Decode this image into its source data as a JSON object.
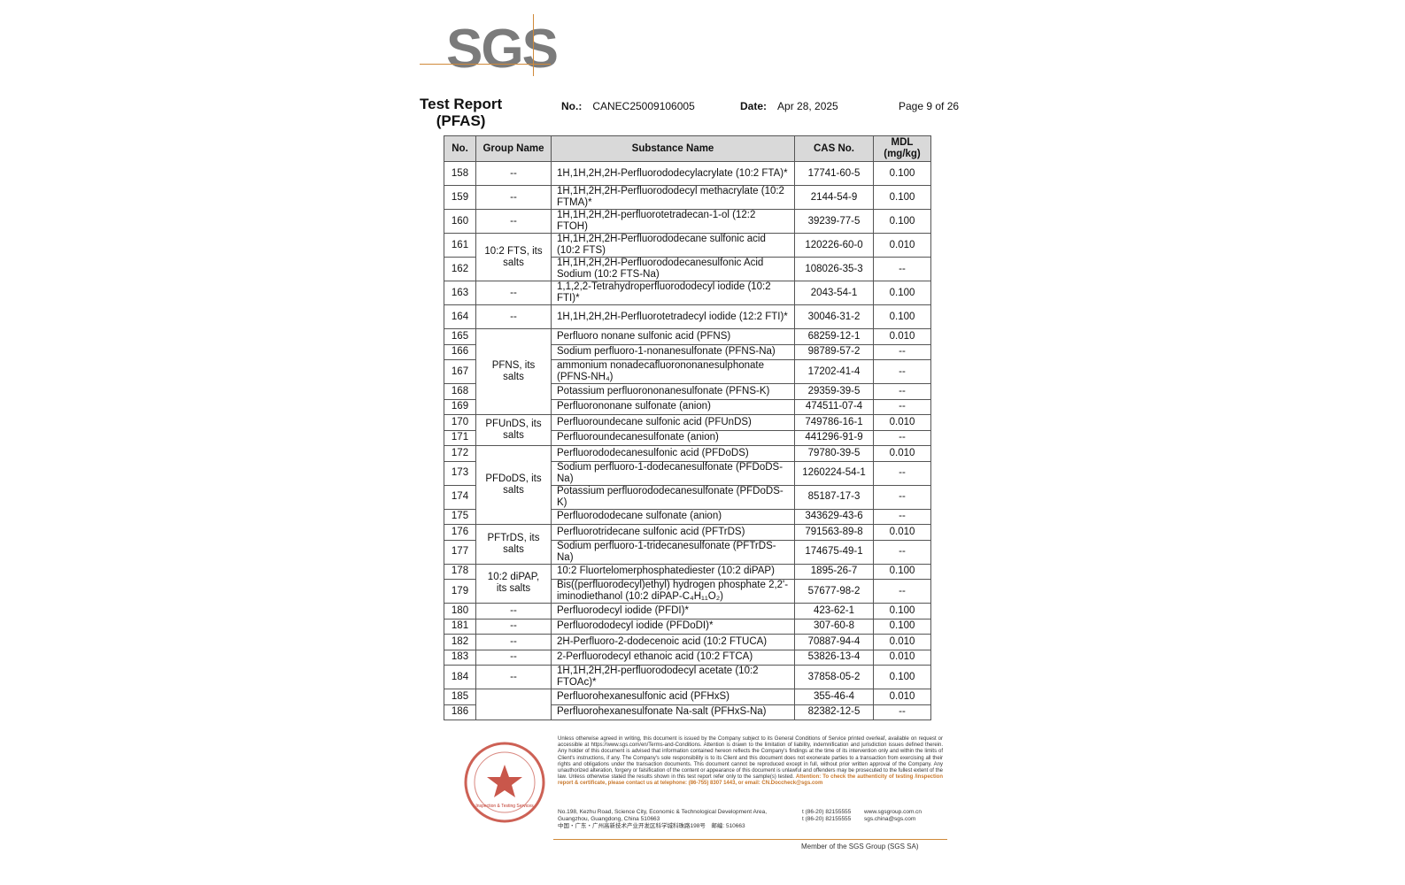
{
  "logo": {
    "text": "SGS"
  },
  "header": {
    "title_line1": "Test Report",
    "title_line2": "(PFAS)",
    "no_label": "No.:",
    "no_value": "CANEC25009106005",
    "date_label": "Date:",
    "date_value": "Apr 28, 2025",
    "page": "Page 9 of 26"
  },
  "table": {
    "columns": [
      "No.",
      "Group Name",
      "Substance Name",
      "CAS No.",
      "MDL (mg/kg)"
    ],
    "rows": [
      {
        "no": "158",
        "group": "--",
        "group_rows": 1,
        "name": "1H,1H,2H,2H-Perfluorododecylacrylate (10:2 FTA)*",
        "cas": "17741-60-5",
        "mdl": "0.100",
        "lines": 2
      },
      {
        "no": "159",
        "group": "--",
        "group_rows": 1,
        "name": "1H,1H,2H,2H-Perfluorododecyl methacrylate (10:2 FTMA)*",
        "cas": "2144-54-9",
        "mdl": "0.100",
        "lines": 2
      },
      {
        "no": "160",
        "group": "--",
        "group_rows": 1,
        "name": "1H,1H,2H,2H-perfluorotetradecan-1-ol (12:2 FTOH)",
        "cas": "39239-77-5",
        "mdl": "0.100",
        "lines": 2
      },
      {
        "no": "161",
        "group": "10:2 FTS, its salts",
        "group_rows": 2,
        "name": "1H,1H,2H,2H-Perfluorododecane sulfonic acid (10:2 FTS)",
        "cas": "120226-60-0",
        "mdl": "0.010",
        "lines": 2
      },
      {
        "no": "162",
        "name": "1H,1H,2H,2H-Perfluorododecanesulfonic Acid Sodium (10:2 FTS-Na)",
        "cas": "108026-35-3",
        "mdl": "--",
        "lines": 2
      },
      {
        "no": "163",
        "group": "--",
        "group_rows": 1,
        "name": "1,1,2,2-Tetrahydroperfluorododecyl iodide (10:2 FTI)*",
        "cas": "2043-54-1",
        "mdl": "0.100",
        "lines": 2
      },
      {
        "no": "164",
        "group": "--",
        "group_rows": 1,
        "name": "1H,1H,2H,2H-Perfluorotetradecyl iodide (12:2 FTI)*",
        "cas": "30046-31-2",
        "mdl": "0.100",
        "lines": 2
      },
      {
        "no": "165",
        "group": "PFNS, its salts",
        "group_rows": 5,
        "name": "Perfluoro nonane sulfonic acid (PFNS)",
        "cas": "68259-12-1",
        "mdl": "0.010",
        "lines": 1
      },
      {
        "no": "166",
        "name": "Sodium perfluoro-1-nonanesulfonate (PFNS-Na)",
        "cas": "98789-57-2",
        "mdl": "--",
        "lines": 1
      },
      {
        "no": "167",
        "name": "ammonium nonadecafluorononanesulphonate (PFNS-NH₄)",
        "cas": "17202-41-4",
        "mdl": "--",
        "lines": 2
      },
      {
        "no": "168",
        "name": "Potassium perfluorononanesulfonate (PFNS-K)",
        "cas": "29359-39-5",
        "mdl": "--",
        "lines": 1
      },
      {
        "no": "169",
        "name": "Perfluorononane sulfonate (anion)",
        "cas": "474511-07-4",
        "mdl": "--",
        "lines": 1
      },
      {
        "no": "170",
        "group": "PFUnDS, its salts",
        "group_rows": 2,
        "name": "Perfluoroundecane sulfonic acid (PFUnDS)",
        "cas": "749786-16-1",
        "mdl": "0.010",
        "lines": 1
      },
      {
        "no": "171",
        "name": "Perfluoroundecanesulfonate (anion)",
        "cas": "441296-91-9",
        "mdl": "--",
        "lines": 1
      },
      {
        "no": "172",
        "group": "PFDoDS, its salts",
        "group_rows": 4,
        "name": "Perfluorododecanesulfonic acid (PFDoDS)",
        "cas": "79780-39-5",
        "mdl": "0.010",
        "lines": 1
      },
      {
        "no": "173",
        "name": "Sodium perfluoro-1-dodecanesulfonate (PFDoDS-Na)",
        "cas": "1260224-54-1",
        "mdl": "--",
        "lines": 2
      },
      {
        "no": "174",
        "name": "Potassium perfluorododecanesulfonate (PFDoDS-K)",
        "cas": "85187-17-3",
        "mdl": "--",
        "lines": 2
      },
      {
        "no": "175",
        "name": "Perfluorododecane sulfonate (anion)",
        "cas": "343629-43-6",
        "mdl": "--",
        "lines": 1
      },
      {
        "no": "176",
        "group": "PFTrDS, its salts",
        "group_rows": 2,
        "name": "Perfluorotridecane sulfonic acid (PFTrDS)",
        "cas": "791563-89-8",
        "mdl": "0.010",
        "lines": 1
      },
      {
        "no": "177",
        "name": "Sodium perfluoro-1-tridecanesulfonate (PFTrDS-Na)",
        "cas": "174675-49-1",
        "mdl": "--",
        "lines": 2
      },
      {
        "no": "178",
        "group": "10:2 diPAP, its salts",
        "group_rows": 2,
        "name": "10:2 Fluortelomerphosphatediester (10:2 diPAP)",
        "cas": "1895-26-7",
        "mdl": "0.100",
        "lines": 1
      },
      {
        "no": "179",
        "name": "Bis((perfluorodecyl)ethyl) hydrogen phosphate 2,2'-iminodiethanol (10:2 diPAP-C₄H₁₁O₂)",
        "cas": "57677-98-2",
        "mdl": "--",
        "lines": 2
      },
      {
        "no": "180",
        "group": "--",
        "group_rows": 1,
        "name": "Perfluorodecyl iodide (PFDI)*",
        "cas": "423-62-1",
        "mdl": "0.100",
        "lines": 1
      },
      {
        "no": "181",
        "group": "--",
        "group_rows": 1,
        "name": "Perfluorododecyl iodide (PFDoDI)*",
        "cas": "307-60-8",
        "mdl": "0.100",
        "lines": 1
      },
      {
        "no": "182",
        "group": "--",
        "group_rows": 1,
        "name": "2H-Perfluoro-2-dodecenoic acid (10:2 FTUCA)",
        "cas": "70887-94-4",
        "mdl": "0.010",
        "lines": 1
      },
      {
        "no": "183",
        "group": "--",
        "group_rows": 1,
        "name": "2-Perfluorodecyl ethanoic acid (10:2 FTCA)",
        "cas": "53826-13-4",
        "mdl": "0.010",
        "lines": 1
      },
      {
        "no": "184",
        "group": "--",
        "group_rows": 1,
        "name": "1H,1H,2H,2H-perfluorododecyl acetate (10:2 FTOAc)*",
        "cas": "37858-05-2",
        "mdl": "0.100",
        "lines": 2
      },
      {
        "no": "185",
        "group": "",
        "group_rows": 2,
        "name": "Perfluorohexanesulfonic acid (PFHxS)",
        "cas": "355-46-4",
        "mdl": "0.010",
        "lines": 1
      },
      {
        "no": "186",
        "name": "Perfluorohexanesulfonate Na-salt (PFHxS-Na)",
        "cas": "82382-12-5",
        "mdl": "--",
        "lines": 1
      }
    ]
  },
  "footer": {
    "legal": "Unless otherwise agreed in writing, this document is issued by the Company subject to its General Conditions of Service printed overleaf, available on request or accessible at https://www.sgs.com/en/Terms-and-Conditions. Attention is drawn to the limitation of liability, indemnification and jurisdiction issues defined therein. Any holder of this document is advised that information contained hereon reflects the Company's findings at the time of its intervention only and within the limits of Client's instructions, if any. The Company's sole responsibility is to its Client and this document does not exonerate parties to a transaction from exercising all their rights and obligations under the transaction documents. This document cannot be reproduced except in full, without prior written approval of the Company. Any unauthorized alteration, forgery or falsification of the content or appearance of this document is unlawful and offenders may be prosecuted to the fullest extent of the law. Unless otherwise stated the results shown in this test report refer only to the sample(s) tested.",
    "attention": "Attention: To check the authenticity of testing /inspection report & certificate, please contact us at telephone: (86-755) 8307 1443, or email: CN.Doccheck@sgs.com",
    "address_en": "No.198, Kezhu Road, Science City, Economic & Technological Development Area, Guangzhou, Guangdong, China 510663",
    "address_cn": "中国・广东・广州高新技术产业开发区科学城科珠路198号　邮编: 510663",
    "tel1": "t (86-20) 82155555",
    "tel2": "t (86-20) 82155555",
    "web": "www.sgsgroup.com.cn",
    "email": "sgs.china@sgs.com",
    "member": "Member of the SGS Group (SGS SA)",
    "seal_text": "Inspection & Testing Services"
  },
  "colors": {
    "accent": "#d08a3a",
    "seal": "#c0392b",
    "header_bg": "#d9d9d9"
  }
}
